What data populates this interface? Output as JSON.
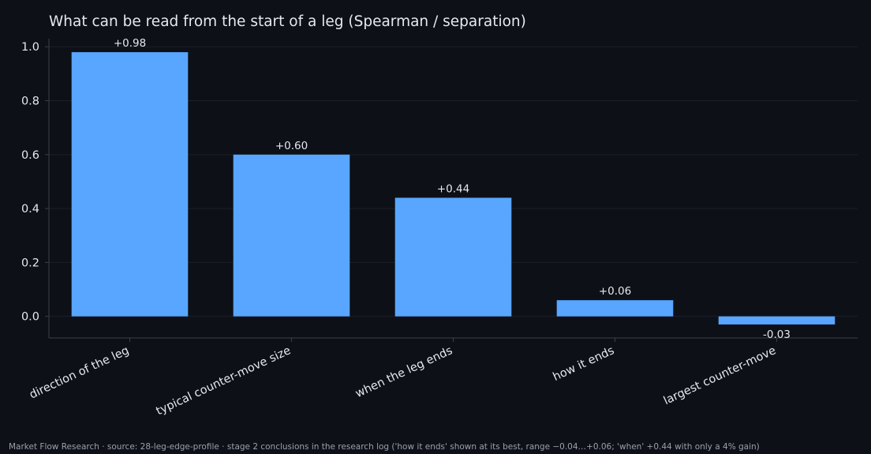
{
  "chart_data": {
    "type": "bar",
    "title": "What can be read from the start of a leg (Spearman / separation)",
    "categories": [
      "direction of the leg",
      "typical counter-move size",
      "when the leg ends",
      "how it ends",
      "largest counter-move"
    ],
    "values": [
      0.98,
      0.6,
      0.44,
      0.06,
      -0.03
    ],
    "value_labels": [
      "+0.98",
      "+0.60",
      "+0.44",
      "+0.06",
      "-0.03"
    ],
    "y_ticks": [
      0.0,
      0.2,
      0.4,
      0.6,
      0.8,
      1.0
    ],
    "y_tick_labels": [
      "0.0",
      "0.2",
      "0.4",
      "0.6",
      "0.8",
      "1.0"
    ],
    "ylim": [
      -0.08,
      1.03
    ],
    "xlabel": "",
    "ylabel": "",
    "grid": true,
    "legend": false,
    "colors": {
      "background": "#0d1017",
      "bar": "#58a6ff",
      "grid": "#1a1f28",
      "axis": "#3a3f4a",
      "text": "#e6e8ec"
    }
  },
  "footer": {
    "note": "Market Flow Research · source: 28-leg-edge-profile · stage 2 conclusions in the research log ('how it ends' shown at its best, range −0.04…+0.06; 'when' +0.44 with only a 4% gain)"
  }
}
